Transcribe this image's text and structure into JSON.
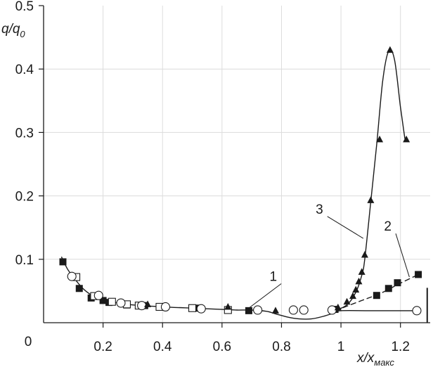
{
  "chart_data": {
    "type": "scatter",
    "xlabel": {
      "main": "x/x",
      "sub": "макс"
    },
    "ylabel": {
      "main": "q/q",
      "sub": "0"
    },
    "xlim": [
      0,
      1.3
    ],
    "ylim": [
      0,
      0.5
    ],
    "x_ticks": [
      {
        "value": 0.2,
        "label": "0.2"
      },
      {
        "value": 0.4,
        "label": "0.4"
      },
      {
        "value": 0.6,
        "label": "0.6"
      },
      {
        "value": 0.8,
        "label": "0.8"
      },
      {
        "value": 1.0,
        "label": "1"
      },
      {
        "value": 1.2,
        "label": "1.2"
      }
    ],
    "y_ticks": [
      {
        "value": 0.1,
        "label": "0.1"
      },
      {
        "value": 0.2,
        "label": "0.2"
      },
      {
        "value": 0.3,
        "label": "0.3"
      },
      {
        "value": 0.4,
        "label": "0.4"
      },
      {
        "value": 0.5,
        "label": "0.5"
      }
    ],
    "origin_label": "0",
    "grid": true,
    "curves": [
      {
        "label": "1",
        "style": "solid",
        "points": [
          [
            0.06,
            0.104
          ],
          [
            0.08,
            0.085
          ],
          [
            0.1,
            0.072
          ],
          [
            0.13,
            0.055
          ],
          [
            0.16,
            0.044
          ],
          [
            0.2,
            0.037
          ],
          [
            0.25,
            0.031
          ],
          [
            0.3,
            0.028
          ],
          [
            0.4,
            0.025
          ],
          [
            0.5,
            0.023
          ],
          [
            0.6,
            0.021
          ],
          [
            0.65,
            0.02
          ],
          [
            0.7,
            0.02
          ],
          [
            0.75,
            0.018
          ],
          [
            0.78,
            0.014
          ],
          [
            0.82,
            0.009
          ],
          [
            0.86,
            0.006
          ],
          [
            0.9,
            0.006
          ],
          [
            0.94,
            0.01
          ],
          [
            0.98,
            0.016
          ],
          [
            1.0,
            0.019
          ],
          [
            1.1,
            0.019
          ],
          [
            1.25,
            0.019
          ]
        ],
        "label_pos": [
          0.785,
          0.066
        ],
        "leader_to": [
          0.69,
          0.023
        ]
      },
      {
        "label": "2",
        "style": "dashed",
        "points": [
          [
            0.98,
            0.019
          ],
          [
            1.02,
            0.026
          ],
          [
            1.07,
            0.035
          ],
          [
            1.11,
            0.042
          ],
          [
            1.15,
            0.05
          ],
          [
            1.19,
            0.06
          ],
          [
            1.26,
            0.076
          ]
        ],
        "label_pos": [
          1.17,
          0.145
        ],
        "leader_to": [
          1.23,
          0.072
        ]
      },
      {
        "label": "3",
        "style": "solid",
        "points": [
          [
            0.98,
            0.019
          ],
          [
            1.02,
            0.028
          ],
          [
            1.05,
            0.048
          ],
          [
            1.07,
            0.075
          ],
          [
            1.08,
            0.1
          ],
          [
            1.1,
            0.19
          ],
          [
            1.12,
            0.28
          ],
          [
            1.14,
            0.38
          ],
          [
            1.16,
            0.428
          ],
          [
            1.18,
            0.415
          ],
          [
            1.2,
            0.34
          ],
          [
            1.215,
            0.29
          ]
        ],
        "label_pos": [
          0.94,
          0.172
        ],
        "leader_to": [
          1.075,
          0.133
        ]
      }
    ],
    "series": [
      {
        "marker": "filled-square",
        "points": [
          [
            0.065,
            0.096
          ],
          [
            0.12,
            0.054
          ],
          [
            0.16,
            0.039
          ],
          [
            0.2,
            0.035
          ],
          [
            0.22,
            0.032
          ],
          [
            0.28,
            0.028
          ],
          [
            0.34,
            0.027
          ],
          [
            0.52,
            0.023
          ],
          [
            0.69,
            0.019
          ],
          [
            0.98,
            0.021
          ],
          [
            1.12,
            0.043
          ],
          [
            1.16,
            0.054
          ],
          [
            1.19,
            0.063
          ],
          [
            1.26,
            0.076
          ]
        ]
      },
      {
        "marker": "open-square",
        "points": [
          [
            0.11,
            0.072
          ],
          [
            0.17,
            0.042
          ],
          [
            0.23,
            0.033
          ],
          [
            0.28,
            0.029
          ],
          [
            0.32,
            0.027
          ],
          [
            0.39,
            0.025
          ],
          [
            0.5,
            0.023
          ],
          [
            0.62,
            0.02
          ]
        ]
      },
      {
        "marker": "open-circle",
        "points": [
          [
            0.095,
            0.073
          ],
          [
            0.185,
            0.043
          ],
          [
            0.26,
            0.031
          ],
          [
            0.33,
            0.027
          ],
          [
            0.41,
            0.025
          ],
          [
            0.53,
            0.022
          ],
          [
            0.72,
            0.02
          ],
          [
            0.84,
            0.02
          ],
          [
            0.875,
            0.02
          ],
          [
            0.97,
            0.02
          ],
          [
            1.255,
            0.019
          ]
        ]
      },
      {
        "marker": "filled-triangle",
        "points": [
          [
            0.35,
            0.029
          ],
          [
            0.62,
            0.025
          ],
          [
            0.78,
            0.019
          ],
          [
            0.99,
            0.024
          ],
          [
            1.02,
            0.033
          ],
          [
            1.04,
            0.042
          ],
          [
            1.05,
            0.052
          ],
          [
            1.06,
            0.065
          ],
          [
            1.07,
            0.08
          ],
          [
            1.08,
            0.107
          ],
          [
            1.1,
            0.193
          ],
          [
            1.13,
            0.289
          ],
          [
            1.165,
            0.43
          ],
          [
            1.22,
            0.289
          ]
        ]
      }
    ],
    "end_marker": {
      "x": 1.29,
      "y_top": 0.055,
      "y_bottom": 0.0
    }
  }
}
